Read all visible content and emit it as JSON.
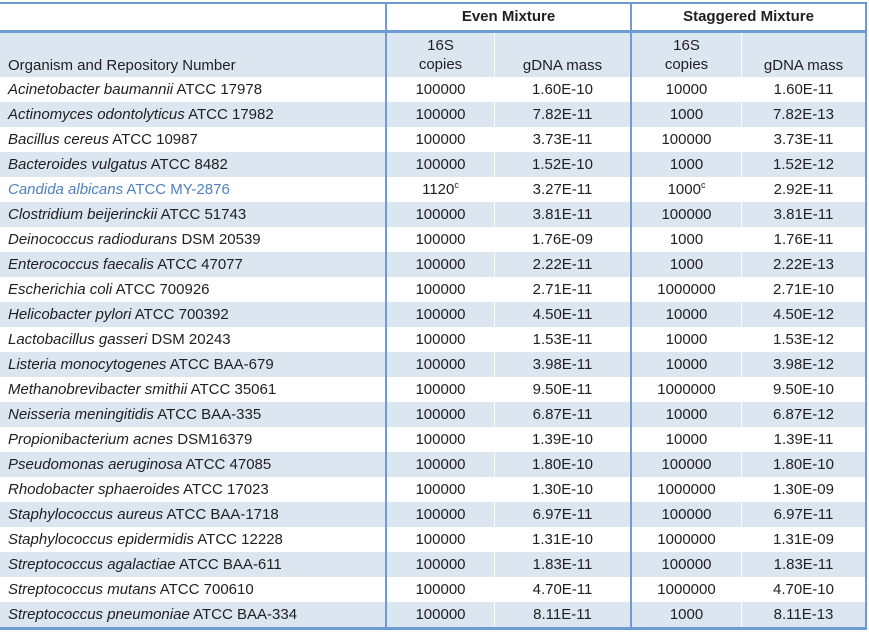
{
  "colors": {
    "border": "#6e9bd2",
    "stripe": "#dce6f1",
    "ink": "#1f1f1f",
    "highlight_text": "#4f81bd"
  },
  "table": {
    "group_even": "Even Mixture",
    "group_staggered": "Staggered Mixture",
    "organism_header": "Organism and Repository Number",
    "sub": {
      "copies_line1": "16S",
      "copies_line2": "copies",
      "gdna": "gDNA mass"
    },
    "rows": [
      {
        "name_italic": "Acinetobacter baumannii",
        "name_plain": "ATCC 17978",
        "even_copies": "100000",
        "even_sup": "",
        "even_gdna": "1.60E-10",
        "stag_copies": "10000",
        "stag_sup": "",
        "stag_gdna": "1.60E-11",
        "highlight": false
      },
      {
        "name_italic": "Actinomyces odontolyticus",
        "name_plain": "ATCC 17982",
        "even_copies": "100000",
        "even_sup": "",
        "even_gdna": "7.82E-11",
        "stag_copies": "1000",
        "stag_sup": "",
        "stag_gdna": "7.82E-13",
        "highlight": false
      },
      {
        "name_italic": "Bacillus cereus",
        "name_plain": "ATCC 10987",
        "even_copies": "100000",
        "even_sup": "",
        "even_gdna": "3.73E-11",
        "stag_copies": "100000",
        "stag_sup": "",
        "stag_gdna": "3.73E-11",
        "highlight": false
      },
      {
        "name_italic": "Bacteroides vulgatus",
        "name_plain": "ATCC 8482",
        "even_copies": "100000",
        "even_sup": "",
        "even_gdna": "1.52E-10",
        "stag_copies": "1000",
        "stag_sup": "",
        "stag_gdna": "1.52E-12",
        "highlight": false
      },
      {
        "name_italic": "Candida albicans",
        "name_plain": "ATCC MY-2876",
        "even_copies": "1120",
        "even_sup": "c",
        "even_gdna": "3.27E-11",
        "stag_copies": "1000",
        "stag_sup": "c",
        "stag_gdna": "2.92E-11",
        "highlight": true
      },
      {
        "name_italic": "Clostridium beijerinckii",
        "name_plain": "ATCC 51743",
        "even_copies": "100000",
        "even_sup": "",
        "even_gdna": "3.81E-11",
        "stag_copies": "100000",
        "stag_sup": "",
        "stag_gdna": "3.81E-11",
        "highlight": false
      },
      {
        "name_italic": "Deinococcus radiodurans",
        "name_plain": "DSM 20539",
        "even_copies": "100000",
        "even_sup": "",
        "even_gdna": "1.76E-09",
        "stag_copies": "1000",
        "stag_sup": "",
        "stag_gdna": "1.76E-11",
        "highlight": false
      },
      {
        "name_italic": "Enterococcus faecalis",
        "name_plain": "ATCC 47077",
        "even_copies": "100000",
        "even_sup": "",
        "even_gdna": "2.22E-11",
        "stag_copies": "1000",
        "stag_sup": "",
        "stag_gdna": "2.22E-13",
        "highlight": false
      },
      {
        "name_italic": "Escherichia coli",
        "name_plain": "ATCC 700926",
        "even_copies": "100000",
        "even_sup": "",
        "even_gdna": "2.71E-11",
        "stag_copies": "1000000",
        "stag_sup": "",
        "stag_gdna": "2.71E-10",
        "highlight": false
      },
      {
        "name_italic": "Helicobacter pylori",
        "name_plain": "ATCC 700392",
        "even_copies": "100000",
        "even_sup": "",
        "even_gdna": "4.50E-11",
        "stag_copies": "10000",
        "stag_sup": "",
        "stag_gdna": "4.50E-12",
        "highlight": false
      },
      {
        "name_italic": "Lactobacillus gasseri",
        "name_plain": "DSM 20243",
        "even_copies": "100000",
        "even_sup": "",
        "even_gdna": "1.53E-11",
        "stag_copies": "10000",
        "stag_sup": "",
        "stag_gdna": "1.53E-12",
        "highlight": false
      },
      {
        "name_italic": "Listeria monocytogenes",
        "name_plain": "ATCC BAA-679",
        "even_copies": "100000",
        "even_sup": "",
        "even_gdna": "3.98E-11",
        "stag_copies": "10000",
        "stag_sup": "",
        "stag_gdna": "3.98E-12",
        "highlight": false
      },
      {
        "name_italic": "Methanobrevibacter smithii",
        "name_plain": "ATCC 35061",
        "even_copies": "100000",
        "even_sup": "",
        "even_gdna": "9.50E-11",
        "stag_copies": "1000000",
        "stag_sup": "",
        "stag_gdna": "9.50E-10",
        "highlight": false
      },
      {
        "name_italic": "Neisseria meningitidis",
        "name_plain": "ATCC BAA-335",
        "even_copies": "100000",
        "even_sup": "",
        "even_gdna": "6.87E-11",
        "stag_copies": "10000",
        "stag_sup": "",
        "stag_gdna": "6.87E-12",
        "highlight": false
      },
      {
        "name_italic": "Propionibacterium acnes",
        "name_plain": "DSM16379",
        "even_copies": "100000",
        "even_sup": "",
        "even_gdna": "1.39E-10",
        "stag_copies": "10000",
        "stag_sup": "",
        "stag_gdna": "1.39E-11",
        "highlight": false
      },
      {
        "name_italic": "Pseudomonas aeruginosa",
        "name_plain": "ATCC 47085",
        "even_copies": "100000",
        "even_sup": "",
        "even_gdna": "1.80E-10",
        "stag_copies": "100000",
        "stag_sup": "",
        "stag_gdna": "1.80E-10",
        "highlight": false
      },
      {
        "name_italic": "Rhodobacter sphaeroides",
        "name_plain": "ATCC 17023",
        "even_copies": "100000",
        "even_sup": "",
        "even_gdna": "1.30E-10",
        "stag_copies": "1000000",
        "stag_sup": "",
        "stag_gdna": "1.30E-09",
        "highlight": false
      },
      {
        "name_italic": "Staphylococcus aureus",
        "name_plain": "ATCC BAA-1718",
        "even_copies": "100000",
        "even_sup": "",
        "even_gdna": "6.97E-11",
        "stag_copies": "100000",
        "stag_sup": "",
        "stag_gdna": "6.97E-11",
        "highlight": false
      },
      {
        "name_italic": "Staphylococcus epidermidis",
        "name_plain": "ATCC 12228",
        "even_copies": "100000",
        "even_sup": "",
        "even_gdna": "1.31E-10",
        "stag_copies": "1000000",
        "stag_sup": "",
        "stag_gdna": "1.31E-09",
        "highlight": false
      },
      {
        "name_italic": "Streptococcus agalactiae",
        "name_plain": "ATCC BAA-611",
        "even_copies": "100000",
        "even_sup": "",
        "even_gdna": "1.83E-11",
        "stag_copies": "100000",
        "stag_sup": "",
        "stag_gdna": "1.83E-11",
        "highlight": false
      },
      {
        "name_italic": "Streptococcus mutans",
        "name_plain": "ATCC 700610",
        "even_copies": "100000",
        "even_sup": "",
        "even_gdna": "4.70E-11",
        "stag_copies": "1000000",
        "stag_sup": "",
        "stag_gdna": "4.70E-10",
        "highlight": false
      },
      {
        "name_italic": "Streptococcus pneumoniae",
        "name_plain": "ATCC BAA-334",
        "even_copies": "100000",
        "even_sup": "",
        "even_gdna": "8.11E-11",
        "stag_copies": "1000",
        "stag_sup": "",
        "stag_gdna": "8.11E-13",
        "highlight": false
      }
    ]
  }
}
